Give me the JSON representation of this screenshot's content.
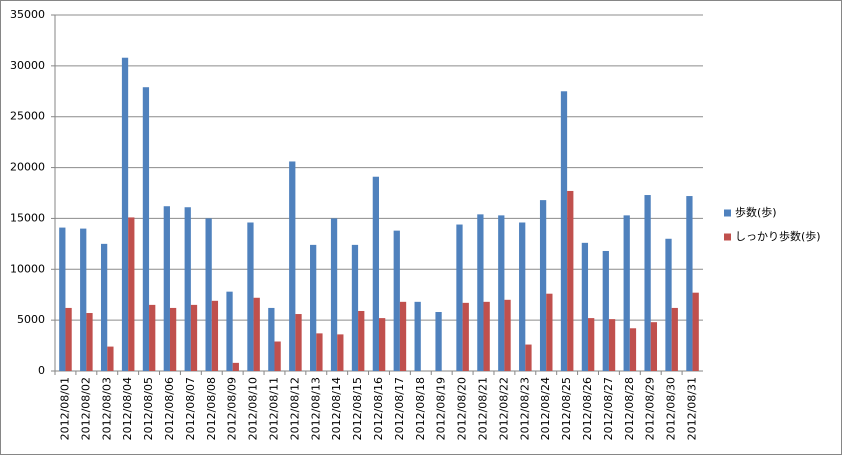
{
  "chart_data": {
    "type": "bar",
    "categories": [
      "2012/08/01",
      "2012/08/02",
      "2012/08/03",
      "2012/08/04",
      "2012/08/05",
      "2012/08/06",
      "2012/08/07",
      "2012/08/08",
      "2012/08/09",
      "2012/08/10",
      "2012/08/11",
      "2012/08/12",
      "2012/08/13",
      "2012/08/14",
      "2012/08/15",
      "2012/08/16",
      "2012/08/17",
      "2012/08/18",
      "2012/08/19",
      "2012/08/20",
      "2012/08/21",
      "2012/08/22",
      "2012/08/23",
      "2012/08/24",
      "2012/08/25",
      "2012/08/26",
      "2012/08/27",
      "2012/08/28",
      "2012/08/29",
      "2012/08/30",
      "2012/08/31"
    ],
    "series": [
      {
        "name": "歩数(歩)",
        "color": "#4f81bd",
        "values": [
          14100,
          14000,
          12500,
          30800,
          27900,
          16200,
          16100,
          15000,
          7800,
          14600,
          6200,
          20600,
          12400,
          15000,
          12400,
          19100,
          13800,
          6800,
          5800,
          14400,
          15400,
          15300,
          14600,
          16800,
          27500,
          12600,
          11800,
          15300,
          17300,
          13000,
          17200
        ]
      },
      {
        "name": "しっかり歩数(歩)",
        "color": "#c0504d",
        "values": [
          6200,
          5700,
          2400,
          15100,
          6500,
          6200,
          6500,
          6900,
          800,
          7200,
          2900,
          5600,
          3700,
          3600,
          5900,
          5200,
          6800,
          0,
          0,
          6700,
          6800,
          7000,
          2600,
          7600,
          17700,
          5200,
          5100,
          4200,
          4800,
          6200,
          7700
        ]
      }
    ],
    "ylim": [
      0,
      35000
    ],
    "yticks": [
      0,
      5000,
      10000,
      15000,
      20000,
      25000,
      30000,
      35000
    ],
    "grid": true,
    "legend": "right"
  }
}
